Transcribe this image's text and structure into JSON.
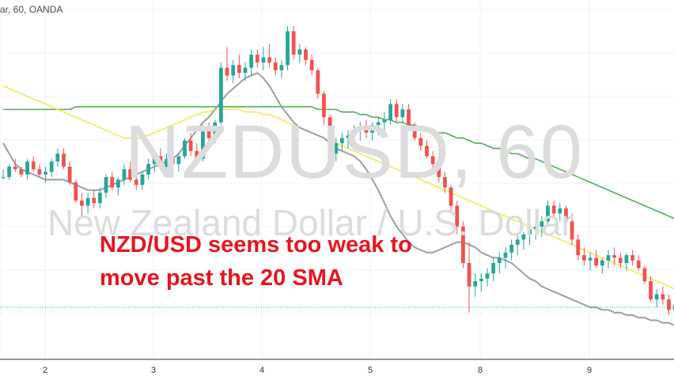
{
  "header": {
    "text": "ar, 60, OANDA"
  },
  "watermark": {
    "symbol": "NZDUSD, 60",
    "description": "New Zealand Dollar / U.S. Dollar"
  },
  "annotation": {
    "line1": "NZD/USD seems too weak to",
    "line2": "move past the 20 SMA"
  },
  "colors": {
    "up_candle": "#26a69a",
    "down_candle": "#ef5350",
    "sma20": "#9e9ea8",
    "sma50": "#f5e94a",
    "sma100": "#4caf50",
    "annotation_text": "#e8141e",
    "watermark": "#dcdcdc",
    "price_line": "#26a69a"
  },
  "chart_data": {
    "type": "candlestick",
    "x_tick_labels": [
      "2",
      "3",
      "4",
      "5",
      "8",
      "9"
    ],
    "grid": true,
    "price_line": 0.6205,
    "series": [
      {
        "name": "",
        "color": "#ef5350",
        "values": []
      }
    ],
    "candles": [
      [
        0.6255,
        0.6258,
        0.6254,
        0.6255
      ],
      [
        0.6255,
        0.626,
        0.6254,
        0.6259
      ],
      [
        0.6259,
        0.6262,
        0.6257,
        0.6258
      ],
      [
        0.6258,
        0.6259,
        0.6255,
        0.6256
      ],
      [
        0.6256,
        0.6262,
        0.6254,
        0.6261
      ],
      [
        0.6261,
        0.6263,
        0.6257,
        0.6258
      ],
      [
        0.6258,
        0.626,
        0.6255,
        0.6256
      ],
      [
        0.6256,
        0.6259,
        0.6253,
        0.6257
      ],
      [
        0.6257,
        0.6262,
        0.6255,
        0.6261
      ],
      [
        0.6261,
        0.6266,
        0.6259,
        0.6264
      ],
      [
        0.6264,
        0.6266,
        0.6258,
        0.6259
      ],
      [
        0.6259,
        0.6261,
        0.6252,
        0.6253
      ],
      [
        0.6253,
        0.6254,
        0.6245,
        0.6246
      ],
      [
        0.6246,
        0.6249,
        0.624,
        0.6244
      ],
      [
        0.6244,
        0.6249,
        0.6241,
        0.6247
      ],
      [
        0.6247,
        0.625,
        0.6243,
        0.6245
      ],
      [
        0.6245,
        0.6251,
        0.6243,
        0.6249
      ],
      [
        0.6249,
        0.6256,
        0.6247,
        0.6255
      ],
      [
        0.6255,
        0.6257,
        0.625,
        0.6251
      ],
      [
        0.6251,
        0.6255,
        0.6248,
        0.6254
      ],
      [
        0.6254,
        0.626,
        0.6252,
        0.6258
      ],
      [
        0.6258,
        0.6261,
        0.6253,
        0.6254
      ],
      [
        0.6254,
        0.6256,
        0.625,
        0.6252
      ],
      [
        0.6252,
        0.6257,
        0.625,
        0.6256
      ],
      [
        0.6256,
        0.6262,
        0.6254,
        0.626
      ],
      [
        0.626,
        0.6264,
        0.6257,
        0.6263
      ],
      [
        0.6263,
        0.6266,
        0.6258,
        0.6259
      ],
      [
        0.6259,
        0.6264,
        0.6257,
        0.6262
      ],
      [
        0.6262,
        0.6263,
        0.6258,
        0.626
      ],
      [
        0.626,
        0.6264,
        0.6257,
        0.6263
      ],
      [
        0.6263,
        0.627,
        0.6262,
        0.6269
      ],
      [
        0.6269,
        0.6272,
        0.6263,
        0.6265
      ],
      [
        0.6265,
        0.6268,
        0.626,
        0.6262
      ],
      [
        0.6262,
        0.6275,
        0.6261,
        0.6273
      ],
      [
        0.6273,
        0.6276,
        0.6268,
        0.627
      ],
      [
        0.627,
        0.6277,
        0.6268,
        0.6276
      ],
      [
        0.6276,
        0.6299,
        0.6275,
        0.6297
      ],
      [
        0.6297,
        0.6305,
        0.6292,
        0.6294
      ],
      [
        0.6294,
        0.63,
        0.6291,
        0.6298
      ],
      [
        0.6298,
        0.6302,
        0.6293,
        0.6295
      ],
      [
        0.6295,
        0.6299,
        0.6292,
        0.6297
      ],
      [
        0.6297,
        0.6304,
        0.6294,
        0.6302
      ],
      [
        0.6302,
        0.6304,
        0.6297,
        0.6299
      ],
      [
        0.6299,
        0.6305,
        0.6296,
        0.6301
      ],
      [
        0.6301,
        0.6306,
        0.6297,
        0.6299
      ],
      [
        0.6299,
        0.6301,
        0.6294,
        0.6296
      ],
      [
        0.6296,
        0.63,
        0.6293,
        0.6298
      ],
      [
        0.6298,
        0.6313,
        0.6296,
        0.6311
      ],
      [
        0.6311,
        0.6313,
        0.63,
        0.6302
      ],
      [
        0.6302,
        0.6306,
        0.6299,
        0.6304
      ],
      [
        0.6304,
        0.6305,
        0.6298,
        0.63
      ],
      [
        0.63,
        0.6302,
        0.6294,
        0.6296
      ],
      [
        0.6296,
        0.6297,
        0.6285,
        0.6287
      ],
      [
        0.6287,
        0.6288,
        0.6275,
        0.6278
      ],
      [
        0.6278,
        0.6279,
        0.6262,
        0.6264
      ],
      [
        0.6264,
        0.627,
        0.6261,
        0.6268
      ],
      [
        0.6268,
        0.6272,
        0.6265,
        0.627
      ],
      [
        0.627,
        0.6273,
        0.6266,
        0.6271
      ],
      [
        0.6271,
        0.6275,
        0.6268,
        0.6273
      ],
      [
        0.6273,
        0.6276,
        0.6269,
        0.6274
      ],
      [
        0.6274,
        0.6277,
        0.627,
        0.6272
      ],
      [
        0.6272,
        0.6276,
        0.6269,
        0.6275
      ],
      [
        0.6275,
        0.6278,
        0.6271,
        0.6276
      ],
      [
        0.6276,
        0.628,
        0.6272,
        0.6277
      ],
      [
        0.6277,
        0.6285,
        0.6275,
        0.6283
      ],
      [
        0.6283,
        0.6285,
        0.6276,
        0.6278
      ],
      [
        0.6278,
        0.6283,
        0.6276,
        0.6281
      ],
      [
        0.6281,
        0.6283,
        0.6274,
        0.6275
      ],
      [
        0.6275,
        0.6276,
        0.6269,
        0.627
      ],
      [
        0.627,
        0.6272,
        0.6265,
        0.6267
      ],
      [
        0.6267,
        0.6269,
        0.6262,
        0.6263
      ],
      [
        0.6263,
        0.6265,
        0.6258,
        0.626
      ],
      [
        0.626,
        0.6262,
        0.6253,
        0.6255
      ],
      [
        0.6255,
        0.6257,
        0.6249,
        0.6251
      ],
      [
        0.6251,
        0.6252,
        0.6242,
        0.6244
      ],
      [
        0.6244,
        0.6246,
        0.6233,
        0.6236
      ],
      [
        0.6236,
        0.6238,
        0.622,
        0.6222
      ],
      [
        0.6222,
        0.623,
        0.6203,
        0.6213
      ],
      [
        0.6213,
        0.6218,
        0.6209,
        0.6215
      ],
      [
        0.6215,
        0.6218,
        0.6211,
        0.6216
      ],
      [
        0.6216,
        0.622,
        0.6213,
        0.6218
      ],
      [
        0.6218,
        0.6224,
        0.6215,
        0.6222
      ],
      [
        0.6222,
        0.6226,
        0.6218,
        0.6224
      ],
      [
        0.6224,
        0.6228,
        0.622,
        0.6226
      ],
      [
        0.6226,
        0.6231,
        0.6223,
        0.6229
      ],
      [
        0.6229,
        0.6233,
        0.6225,
        0.6231
      ],
      [
        0.6231,
        0.6234,
        0.6227,
        0.6233
      ],
      [
        0.6233,
        0.6236,
        0.6229,
        0.6235
      ],
      [
        0.6235,
        0.6238,
        0.6231,
        0.6236
      ],
      [
        0.6236,
        0.624,
        0.6232,
        0.6238
      ],
      [
        0.6238,
        0.6246,
        0.6236,
        0.6244
      ],
      [
        0.6244,
        0.6246,
        0.6239,
        0.6241
      ],
      [
        0.6241,
        0.6245,
        0.6238,
        0.6243
      ],
      [
        0.6243,
        0.6244,
        0.6237,
        0.6238
      ],
      [
        0.6238,
        0.6241,
        0.6229,
        0.6231
      ],
      [
        0.6231,
        0.6233,
        0.6223,
        0.6225
      ],
      [
        0.6225,
        0.6228,
        0.6221,
        0.6223
      ],
      [
        0.6223,
        0.6226,
        0.6219,
        0.6224
      ],
      [
        0.6224,
        0.6227,
        0.622,
        0.6221
      ],
      [
        0.6221,
        0.6224,
        0.6218,
        0.6223
      ],
      [
        0.6223,
        0.6227,
        0.622,
        0.6225
      ],
      [
        0.6225,
        0.6228,
        0.6221,
        0.6224
      ],
      [
        0.6224,
        0.6226,
        0.622,
        0.6222
      ],
      [
        0.6222,
        0.6226,
        0.6219,
        0.6225
      ],
      [
        0.6225,
        0.6227,
        0.6221,
        0.6223
      ],
      [
        0.6223,
        0.6225,
        0.6219,
        0.622
      ],
      [
        0.622,
        0.6221,
        0.6214,
        0.6215
      ],
      [
        0.6215,
        0.6217,
        0.6207,
        0.6208
      ],
      [
        0.6208,
        0.6212,
        0.6205,
        0.621
      ],
      [
        0.621,
        0.6213,
        0.6206,
        0.6208
      ],
      [
        0.6208,
        0.621,
        0.6202,
        0.6204
      ],
      [
        0.6204,
        0.6208,
        0.6201,
        0.6206
      ],
      [
        0.6206,
        0.6209,
        0.6202,
        0.6205
      ],
      [
        0.6205,
        0.6208,
        0.6201,
        0.6206
      ],
      [
        0.6206,
        0.6208,
        0.6201,
        0.6203
      ],
      [
        0.6203,
        0.6206,
        0.6199,
        0.6201
      ]
    ],
    "sma20": [
      0.6268,
      0.6264,
      0.626,
      0.6258,
      0.6257,
      0.6256,
      0.6255,
      0.6254,
      0.6254,
      0.6254,
      0.6254,
      0.6253,
      0.6252,
      0.6251,
      0.625,
      0.625,
      0.625,
      0.6251,
      0.6252,
      0.6253,
      0.6254,
      0.6255,
      0.6256,
      0.6257,
      0.6258,
      0.6259,
      0.626,
      0.6261,
      0.6262,
      0.6264,
      0.6267,
      0.627,
      0.6273,
      0.6276,
      0.6278,
      0.6281,
      0.6284,
      0.6287,
      0.6289,
      0.6291,
      0.6293,
      0.6294,
      0.6295,
      0.6293,
      0.629,
      0.6286,
      0.6282,
      0.6279,
      0.6276,
      0.6274,
      0.6273,
      0.6272,
      0.6271,
      0.627,
      0.6268,
      0.6266,
      0.6265,
      0.6264,
      0.6263,
      0.6261,
      0.6258,
      0.6254,
      0.625,
      0.6245,
      0.624,
      0.6236,
      0.6233,
      0.623,
      0.6228,
      0.6227,
      0.6226,
      0.6226,
      0.6227,
      0.6228,
      0.6229,
      0.623,
      0.623,
      0.6229,
      0.6228,
      0.6226,
      0.6225,
      0.6224,
      0.6224,
      0.6223,
      0.6222,
      0.622,
      0.6218,
      0.6216,
      0.6215,
      0.6213,
      0.6212,
      0.6211,
      0.621,
      0.6209,
      0.6208,
      0.6207,
      0.6206,
      0.6205,
      0.6205,
      0.6204,
      0.6204,
      0.6203,
      0.6203,
      0.6202,
      0.6202,
      0.6201,
      0.6201,
      0.62,
      0.62,
      0.6199,
      0.6199,
      0.6198
    ],
    "sma50": [
      0.629,
      0.6289,
      0.6288,
      0.6287,
      0.6286,
      0.6285,
      0.6284,
      0.6283,
      0.6282,
      0.6281,
      0.628,
      0.6279,
      0.6278,
      0.6277,
      0.6276,
      0.6275,
      0.6274,
      0.6273,
      0.6272,
      0.6271,
      0.627,
      0.627,
      0.627,
      0.627,
      0.6271,
      0.6272,
      0.6273,
      0.6274,
      0.6275,
      0.6276,
      0.6277,
      0.6278,
      0.6279,
      0.628,
      0.628,
      0.6281,
      0.6281,
      0.6281,
      0.6281,
      0.6281,
      0.628,
      0.628,
      0.628,
      0.6279,
      0.6279,
      0.6278,
      0.6277,
      0.6276,
      0.6275,
      0.6274,
      0.6273,
      0.6272,
      0.6271,
      0.627,
      0.6269,
      0.6268,
      0.6267,
      0.6266,
      0.6265,
      0.6264,
      0.6263,
      0.6262,
      0.6261,
      0.626,
      0.6259,
      0.6258,
      0.6257,
      0.6256,
      0.6255,
      0.6254,
      0.6253,
      0.6252,
      0.6251,
      0.625,
      0.6249,
      0.6248,
      0.6247,
      0.6246,
      0.6245,
      0.6244,
      0.6243,
      0.6242,
      0.6241,
      0.624,
      0.6239,
      0.6238,
      0.6237,
      0.6236,
      0.6235,
      0.6234,
      0.6233,
      0.6232,
      0.6231,
      0.623,
      0.6229,
      0.6228,
      0.6227,
      0.6226,
      0.6225,
      0.6224,
      0.6223,
      0.6222,
      0.6221,
      0.622,
      0.6219,
      0.6218,
      0.6217,
      0.6216,
      0.6215,
      0.6214,
      0.6213,
      0.6212
    ],
    "sma100": [
      0.6281,
      0.6281,
      0.6281,
      0.6281,
      0.6281,
      0.6281,
      0.6281,
      0.6281,
      0.6281,
      0.6281,
      0.6281,
      0.6281,
      0.6282,
      0.6282,
      0.6282,
      0.6282,
      0.6282,
      0.6282,
      0.6282,
      0.6282,
      0.6282,
      0.6282,
      0.6282,
      0.6282,
      0.6282,
      0.6282,
      0.6282,
      0.6282,
      0.6282,
      0.6282,
      0.6282,
      0.6282,
      0.6282,
      0.6282,
      0.6282,
      0.6282,
      0.6282,
      0.6282,
      0.6282,
      0.6282,
      0.6282,
      0.6282,
      0.6282,
      0.6282,
      0.6282,
      0.6282,
      0.6282,
      0.6282,
      0.6282,
      0.6282,
      0.6282,
      0.6282,
      0.6281,
      0.6281,
      0.6281,
      0.6281,
      0.628,
      0.628,
      0.628,
      0.6279,
      0.6279,
      0.6278,
      0.6278,
      0.6277,
      0.6277,
      0.6276,
      0.6276,
      0.6275,
      0.6275,
      0.6274,
      0.6274,
      0.6273,
      0.6272,
      0.6272,
      0.6271,
      0.627,
      0.627,
      0.6269,
      0.6268,
      0.6268,
      0.6267,
      0.6266,
      0.6266,
      0.6265,
      0.6264,
      0.6264,
      0.6263,
      0.6262,
      0.6262,
      0.6261,
      0.626,
      0.6259,
      0.6258,
      0.6257,
      0.6256,
      0.6255,
      0.6254,
      0.6253,
      0.6252,
      0.6251,
      0.625,
      0.6249,
      0.6248,
      0.6247,
      0.6246,
      0.6245,
      0.6244,
      0.6243,
      0.6242,
      0.6241,
      0.624,
      0.6239
    ]
  }
}
